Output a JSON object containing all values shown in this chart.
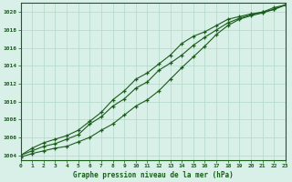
{
  "title": "Graphe pression niveau de la mer (hPa)",
  "bg_color": "#d8f0e8",
  "grid_color": "#b0d8c8",
  "line_color": "#1a5c1a",
  "xlim": [
    0,
    23
  ],
  "ylim": [
    1003.5,
    1021
  ],
  "yticks": [
    1004,
    1006,
    1008,
    1010,
    1012,
    1014,
    1016,
    1018,
    1020
  ],
  "xticks": [
    0,
    1,
    2,
    3,
    4,
    5,
    6,
    7,
    8,
    9,
    10,
    11,
    12,
    13,
    14,
    15,
    16,
    17,
    18,
    19,
    20,
    21,
    22,
    23
  ],
  "hours": [
    0,
    1,
    2,
    3,
    4,
    5,
    6,
    7,
    8,
    9,
    10,
    11,
    12,
    13,
    14,
    15,
    16,
    17,
    18,
    19,
    20,
    21,
    22,
    23
  ],
  "pressure_upper": [
    1004.0,
    1004.8,
    1005.4,
    1005.8,
    1006.2,
    1006.8,
    1007.8,
    1008.8,
    1010.2,
    1011.2,
    1012.5,
    1013.2,
    1014.2,
    1015.2,
    1016.5,
    1017.3,
    1017.8,
    1018.5,
    1019.2,
    1019.5,
    1019.8,
    1020.0,
    1020.5,
    1020.8
  ],
  "pressure_mid": [
    1004.0,
    1004.5,
    1005.0,
    1005.3,
    1005.8,
    1006.3,
    1007.5,
    1008.3,
    1009.5,
    1010.3,
    1011.5,
    1012.2,
    1013.5,
    1014.3,
    1015.2,
    1016.3,
    1017.2,
    1018.0,
    1018.8,
    1019.3,
    1019.7,
    1020.0,
    1020.3,
    1020.8
  ],
  "pressure_lower": [
    1003.8,
    1004.2,
    1004.5,
    1004.8,
    1005.0,
    1005.5,
    1006.0,
    1006.8,
    1007.5,
    1008.5,
    1009.5,
    1010.2,
    1011.2,
    1012.5,
    1013.8,
    1015.0,
    1016.2,
    1017.5,
    1018.5,
    1019.2,
    1019.6,
    1019.9,
    1020.3,
    1020.8
  ]
}
